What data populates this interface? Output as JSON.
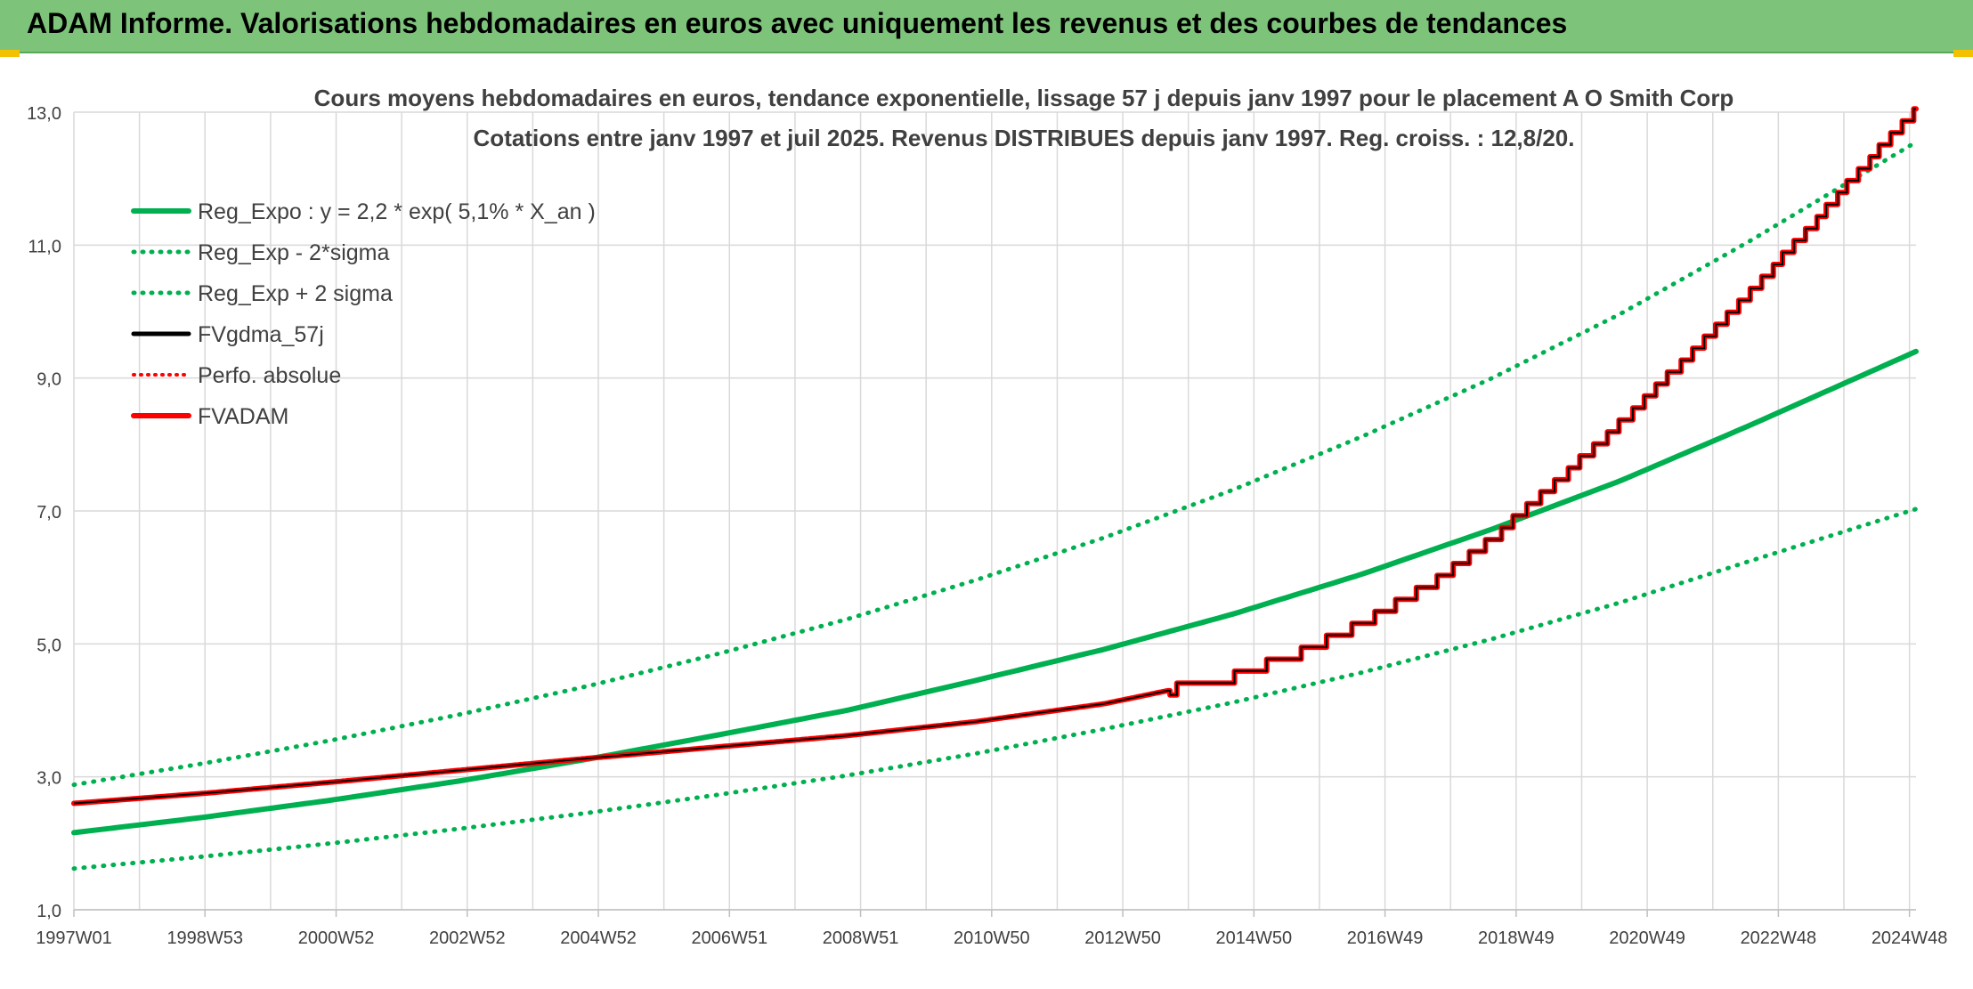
{
  "header": {
    "title": "ADAM Informe. Valorisations hebdomadaires en euros avec uniquement les revenus et des courbes de tendances"
  },
  "colors": {
    "header_bg": "#7dc47a",
    "green": "#00b050",
    "red": "#ff0000",
    "black": "#000000",
    "grid": "#d9d9d9"
  },
  "chart_data": {
    "type": "line",
    "title_line1": "Cours moyens hebdomadaires en euros, tendance exponentielle, lissage 57 j depuis janv 1997 pour le placement A O Smith Corp",
    "title_line2": "Cotations entre janv 1997 et juil 2025. Revenus DISTRIBUES depuis janv 1997. Reg. croiss. : 12,8/20.",
    "x_ticks": [
      "1997W01",
      "1998W53",
      "2000W52",
      "2002W52",
      "2004W52",
      "2006W51",
      "2008W51",
      "2010W50",
      "2012W50",
      "2014W50",
      "2016W49",
      "2018W49",
      "2020W49",
      "2022W48",
      "2024W48"
    ],
    "x_range": [
      1997.0,
      2025.6
    ],
    "y_ticks": [
      "1,0",
      "3,0",
      "5,0",
      "7,0",
      "9,0",
      "11,0",
      "13,0"
    ],
    "ylim": [
      1.0,
      13.0
    ],
    "grid": true,
    "legend_position": "top-left",
    "legend": [
      {
        "name": "Reg_Expo : y = 2,2 * exp( 5,1% *  X_an )",
        "style": "solid-green"
      },
      {
        "name": "Reg_Exp - 2*sigma",
        "style": "dotted-green"
      },
      {
        "name": "Reg_Exp + 2 sigma",
        "style": "dotted-green"
      },
      {
        "name": "FVgdma_57j",
        "style": "solid-black"
      },
      {
        "name": "Perfo. absolue",
        "style": "dotted-red"
      },
      {
        "name": "FVADAM",
        "style": "solid-red"
      }
    ],
    "series": [
      {
        "name": "Reg_Expo : y = 2,2 * exp( 5,1% *  X_an )",
        "x": [
          1997,
          1999,
          2001,
          2003,
          2005,
          2007,
          2009,
          2011,
          2013,
          2015,
          2017,
          2019,
          2021,
          2023,
          2025.6
        ],
        "values": [
          2.16,
          2.39,
          2.65,
          2.94,
          3.27,
          3.63,
          4.0,
          4.45,
          4.92,
          5.45,
          6.05,
          6.72,
          7.45,
          8.28,
          9.4
        ]
      },
      {
        "name": "Reg_Exp - 2*sigma",
        "x": [
          1997,
          1999,
          2001,
          2003,
          2005,
          2007,
          2009,
          2011,
          2013,
          2015,
          2017,
          2019,
          2021,
          2023,
          2025.6
        ],
        "values": [
          1.62,
          1.8,
          2.0,
          2.22,
          2.46,
          2.73,
          3.02,
          3.35,
          3.72,
          4.12,
          4.57,
          5.07,
          5.62,
          6.24,
          7.03
        ]
      },
      {
        "name": "Reg_Exp + 2 sigma",
        "x": [
          1997,
          1999,
          2001,
          2003,
          2005,
          2007,
          2009,
          2011,
          2013,
          2015,
          2017,
          2019,
          2021,
          2023,
          2025.6
        ],
        "values": [
          2.88,
          3.2,
          3.55,
          3.94,
          4.37,
          4.85,
          5.37,
          5.96,
          6.6,
          7.32,
          8.12,
          8.99,
          9.96,
          11.05,
          12.55
        ]
      },
      {
        "name": "FVgdma_57j",
        "x": [
          1997,
          1999,
          2001,
          2003,
          2005,
          2007,
          2009,
          2011,
          2013,
          2015,
          2016,
          2017,
          2018,
          2019,
          2020,
          2021,
          2022,
          2023,
          2024,
          2025,
          2025.6
        ],
        "values": [
          2.6,
          2.75,
          2.92,
          3.1,
          3.28,
          3.45,
          3.62,
          3.83,
          4.1,
          4.5,
          4.85,
          5.3,
          5.85,
          6.55,
          7.4,
          8.3,
          9.25,
          10.25,
          11.3,
          12.4,
          13.0
        ]
      },
      {
        "name": "FVADAM",
        "x": [
          1997,
          1999,
          2001,
          2003,
          2005,
          2007,
          2009,
          2011,
          2013,
          2015,
          2016,
          2017,
          2018,
          2019,
          2020,
          2021,
          2022,
          2023,
          2024,
          2025,
          2025.6
        ],
        "values": [
          2.6,
          2.75,
          2.92,
          3.1,
          3.28,
          3.45,
          3.62,
          3.83,
          4.1,
          4.5,
          4.85,
          5.3,
          5.85,
          6.55,
          7.4,
          8.3,
          9.25,
          10.25,
          11.3,
          12.4,
          13.0
        ]
      }
    ]
  }
}
